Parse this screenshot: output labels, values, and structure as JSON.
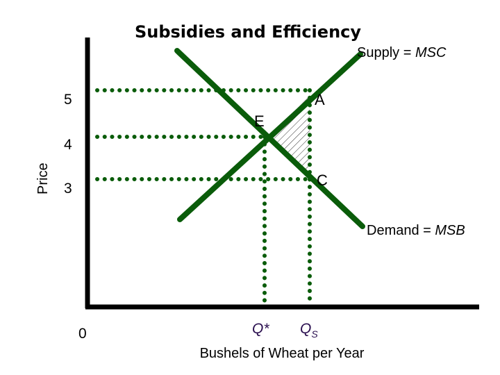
{
  "title": "Subsidies and Efficiency",
  "axes": {
    "y_label": "Price",
    "x_label": "Bushels of Wheat per Year",
    "origin": "0"
  },
  "price_ticks": [
    "5",
    "4",
    "3"
  ],
  "curves": {
    "supply_prefix": "Supply = ",
    "supply_suffix": "MSC",
    "demand_prefix": "Demand = ",
    "demand_suffix": "MSB",
    "color": "#0a5c0a"
  },
  "points": {
    "a": "A",
    "e": "E",
    "c": "C"
  },
  "quantities": {
    "q_star": "Q*",
    "q_s": "Q",
    "q_s_sub": "S"
  }
}
